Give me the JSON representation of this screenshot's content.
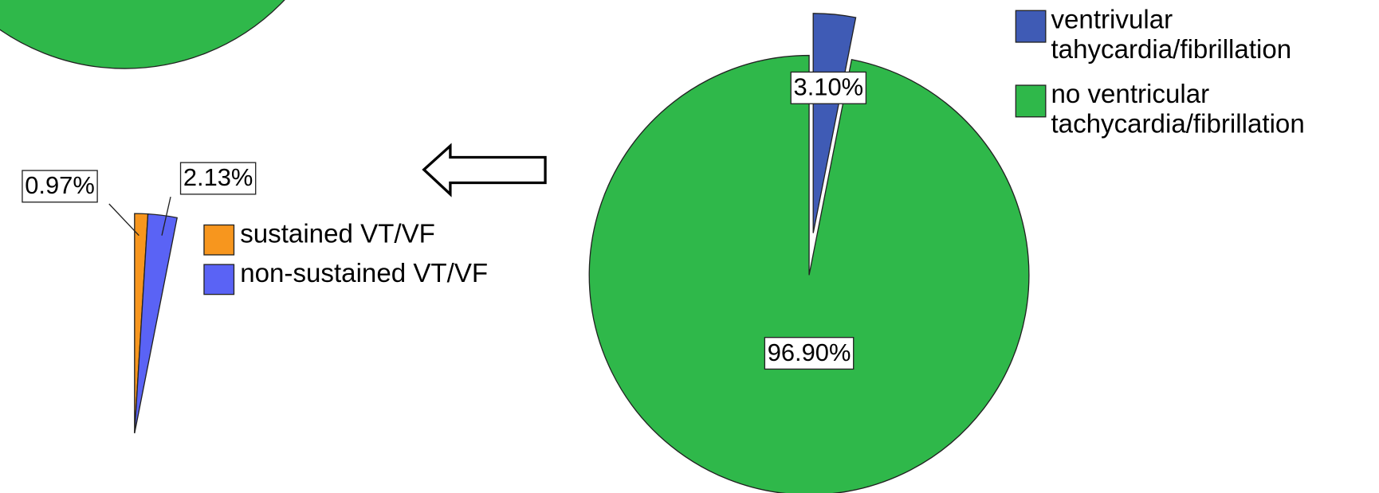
{
  "chart_data": [
    {
      "type": "pie",
      "categories": [
        "ventrivular tahycardia/fibrillation",
        "no ventricular tachycardia/fibrillation"
      ],
      "values": [
        3.1,
        96.9
      ],
      "value_labels": [
        "3.10%",
        "96.90%"
      ],
      "colors": [
        "#3f5bb5",
        "#2fb84a"
      ]
    },
    {
      "type": "pie",
      "categories": [
        "sustained VT/VF",
        "non-sustained VT/VF"
      ],
      "values": [
        0.97,
        2.13
      ],
      "value_labels": [
        "0.97%",
        "2.13%"
      ],
      "colors": [
        "#f7961e",
        "#5a63f5"
      ]
    }
  ]
}
